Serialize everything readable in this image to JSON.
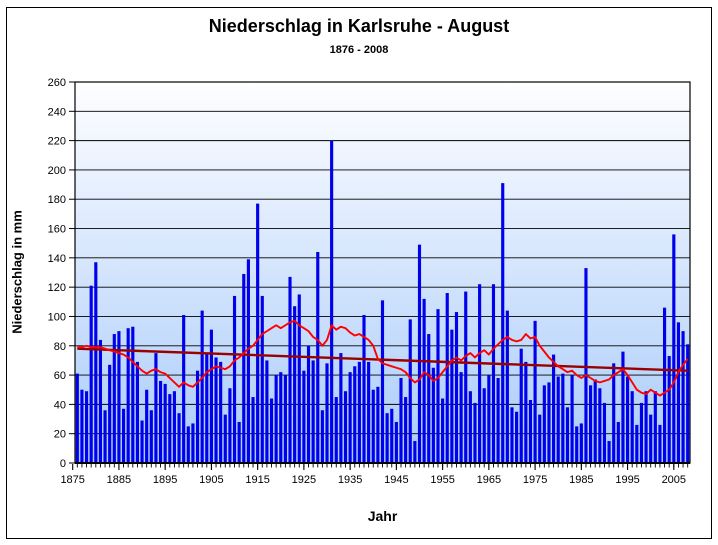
{
  "chart": {
    "title": "Niederschlag in Karlsruhe - August",
    "subtitle": "1876 - 2008",
    "y_axis_title": "Niederschlag in mm",
    "x_axis_title": "Jahr"
  },
  "chart_data": {
    "type": "bar",
    "title": "Niederschlag in Karlsruhe - August",
    "subtitle": "1876 - 2008",
    "xlabel": "Jahr",
    "ylabel": "Niederschlag in mm",
    "ylim": [
      0,
      260
    ],
    "ytick_step": 20,
    "yticks": [
      0,
      20,
      40,
      60,
      80,
      100,
      120,
      140,
      160,
      180,
      200,
      220,
      240,
      260
    ],
    "xticks": [
      1875,
      1885,
      1895,
      1905,
      1915,
      1925,
      1935,
      1945,
      1955,
      1965,
      1975,
      1985,
      1995,
      2005
    ],
    "grid": "horizontal",
    "legend": "none",
    "year_start": 1876,
    "year_end": 2008,
    "years": [
      1876,
      1877,
      1878,
      1879,
      1880,
      1881,
      1882,
      1883,
      1884,
      1885,
      1886,
      1887,
      1888,
      1889,
      1890,
      1891,
      1892,
      1893,
      1894,
      1895,
      1896,
      1897,
      1898,
      1899,
      1900,
      1901,
      1902,
      1903,
      1904,
      1905,
      1906,
      1907,
      1908,
      1909,
      1910,
      1911,
      1912,
      1913,
      1914,
      1915,
      1916,
      1917,
      1918,
      1919,
      1920,
      1921,
      1922,
      1923,
      1924,
      1925,
      1926,
      1927,
      1928,
      1929,
      1930,
      1931,
      1932,
      1933,
      1934,
      1935,
      1936,
      1937,
      1938,
      1939,
      1940,
      1941,
      1942,
      1943,
      1944,
      1945,
      1946,
      1947,
      1948,
      1949,
      1950,
      1951,
      1952,
      1953,
      1954,
      1955,
      1956,
      1957,
      1958,
      1959,
      1960,
      1961,
      1962,
      1963,
      1964,
      1965,
      1966,
      1967,
      1968,
      1969,
      1970,
      1971,
      1972,
      1973,
      1974,
      1975,
      1976,
      1977,
      1978,
      1979,
      1980,
      1981,
      1982,
      1983,
      1984,
      1985,
      1986,
      1987,
      1988,
      1989,
      1990,
      1991,
      1992,
      1993,
      1994,
      1995,
      1996,
      1997,
      1998,
      1999,
      2000,
      2001,
      2002,
      2003,
      2004,
      2005,
      2006,
      2007,
      2008
    ],
    "values": [
      61,
      50,
      49,
      121,
      137,
      84,
      36,
      67,
      88,
      90,
      37,
      92,
      93,
      69,
      29,
      50,
      36,
      75,
      56,
      54,
      47,
      49,
      34,
      101,
      25,
      27,
      63,
      104,
      75,
      91,
      72,
      69,
      33,
      51,
      114,
      28,
      129,
      139,
      45,
      177,
      114,
      70,
      44,
      60,
      62,
      60,
      127,
      107,
      115,
      63,
      80,
      70,
      144,
      36,
      68,
      220,
      45,
      75,
      49,
      62,
      66,
      69,
      101,
      69,
      50,
      52,
      111,
      34,
      37,
      28,
      58,
      45,
      98,
      15,
      149,
      112,
      88,
      65,
      105,
      44,
      116,
      91,
      103,
      62,
      117,
      49,
      41,
      122,
      51,
      60,
      122,
      58,
      191,
      104,
      38,
      35,
      78,
      69,
      43,
      97,
      33,
      53,
      55,
      74,
      59,
      61,
      38,
      60,
      25,
      27,
      133,
      53,
      57,
      51,
      41,
      15,
      68,
      28,
      76,
      59,
      49,
      26,
      41,
      49,
      33,
      49,
      26,
      106,
      73,
      156,
      96,
      90,
      81
    ],
    "moving_average_values": [
      79,
      79,
      80,
      79,
      79,
      79,
      78,
      77,
      76,
      75,
      74,
      72,
      69,
      66,
      63,
      61,
      63,
      64,
      62,
      61,
      58,
      55,
      52,
      55,
      53,
      52,
      55,
      58,
      62,
      64,
      66,
      65,
      64,
      66,
      70,
      72,
      75,
      78,
      80,
      84,
      88,
      90,
      92,
      94,
      92,
      94,
      96,
      97,
      94,
      92,
      90,
      86,
      84,
      80,
      84,
      94,
      91,
      93,
      92,
      89,
      87,
      88,
      86,
      84,
      80,
      71,
      68,
      67,
      66,
      65,
      64,
      62,
      58,
      55,
      57,
      62,
      60,
      56,
      58,
      62,
      66,
      70,
      72,
      70,
      73,
      75,
      72,
      75,
      77,
      74,
      78,
      81,
      84,
      86,
      84,
      83,
      84,
      88,
      85,
      86,
      80,
      76,
      72,
      69,
      66,
      64,
      62,
      63,
      60,
      58,
      60,
      58,
      56,
      55,
      56,
      57,
      60,
      62,
      64,
      60,
      55,
      50,
      48,
      47,
      50,
      48,
      46,
      48,
      50,
      55,
      62,
      67,
      71
    ],
    "trend_line": {
      "start_value": 78,
      "end_value": 63
    },
    "colors": {
      "bar": "#0000EB",
      "moving_average_line": "#FF0000",
      "trend_line": "#990000",
      "gridline": "#000000",
      "plot_bg_top": "#FEFEFF",
      "plot_bg_bottom": "#A9CBFA",
      "text": "#000000"
    }
  }
}
